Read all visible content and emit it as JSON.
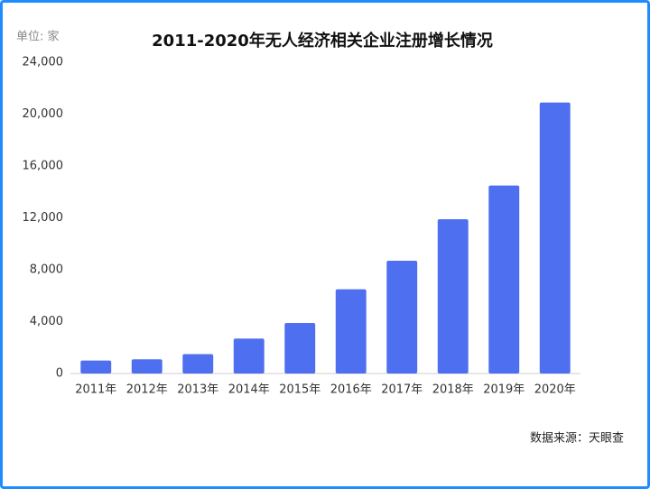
{
  "chart_data": {
    "type": "bar",
    "title": "2011-2020年无人经济相关企业注册增长情况",
    "unit": "单位: 家",
    "source": "数据来源：天眼查",
    "categories": [
      "2011年",
      "2012年",
      "2013年",
      "2014年",
      "2015年",
      "2016年",
      "2017年",
      "2018年",
      "2019年",
      "2020年"
    ],
    "values": [
      1000,
      1100,
      1500,
      2700,
      3900,
      6500,
      8700,
      11900,
      14500,
      20900
    ],
    "color": "#4e6ff0",
    "ylim": [
      0,
      24000
    ],
    "yticks": [
      0,
      {
        "value": 4000,
        "label": "4,000"
      },
      {
        "value": 8000,
        "label": "8,000"
      },
      {
        "value": 12000,
        "label": "12,000"
      },
      {
        "value": 16000,
        "label": "16,000"
      },
      {
        "value": 20000,
        "label": "20,000"
      },
      {
        "value": 24000,
        "label": "24,000"
      }
    ],
    "grid": false
  }
}
